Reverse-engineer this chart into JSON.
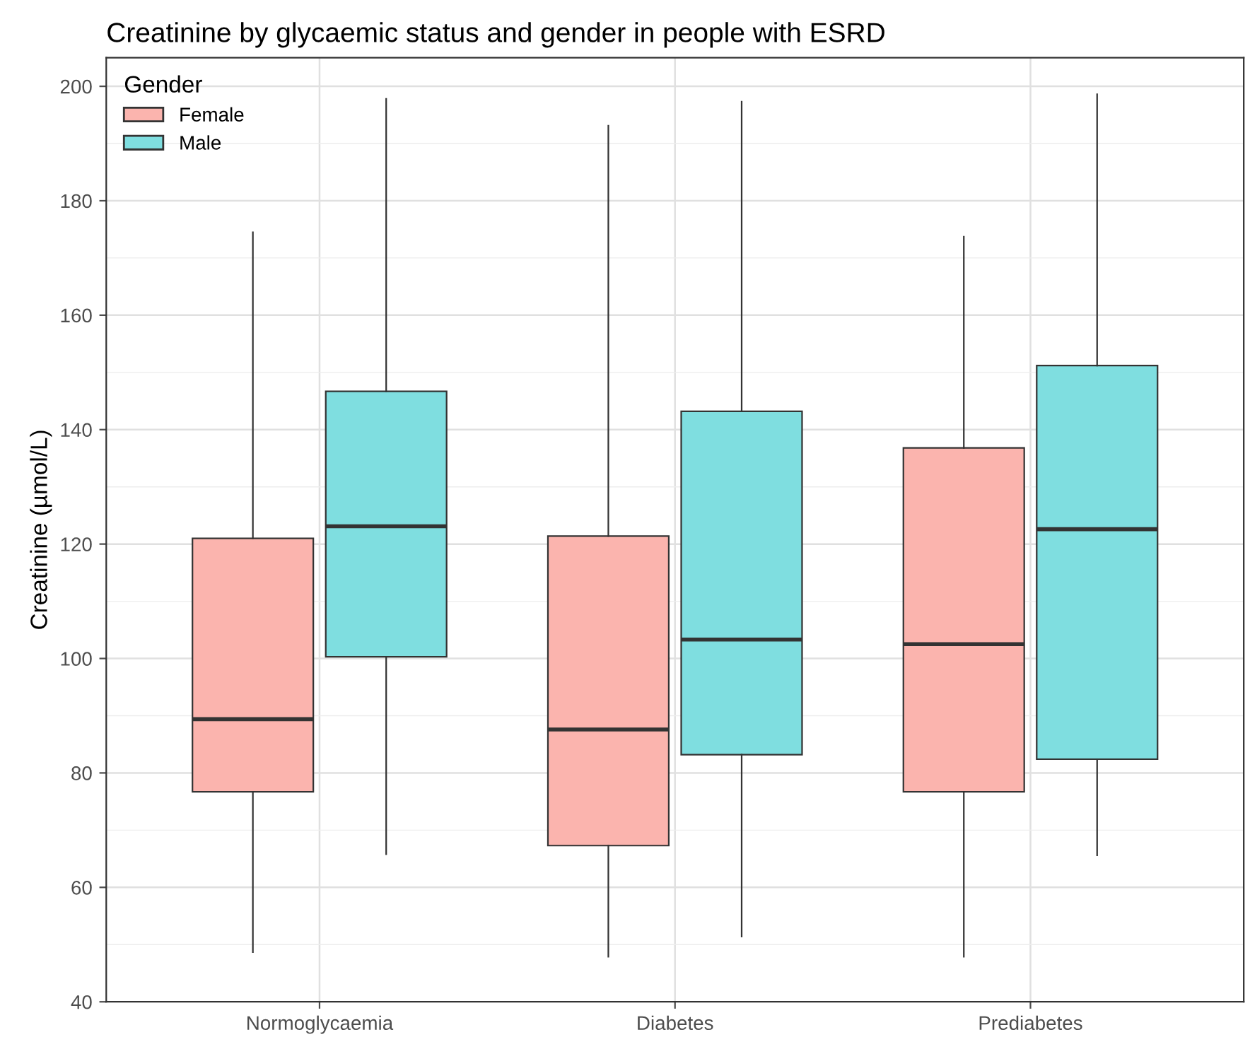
{
  "chart_data": {
    "type": "box",
    "title": "Creatinine by glycaemic status and gender in people with ESRD",
    "ylabel": "Creatinine (µmol/L)",
    "legend_title": "Gender",
    "categories": [
      "Normoglycaemia",
      "Diabetes",
      "Prediabetes"
    ],
    "series": [
      {
        "name": "Female",
        "color": "#fbb4ae",
        "boxes": [
          {
            "low": 48.7,
            "q1": 76.7,
            "median": 89.4,
            "q3": 121,
            "high": 174.5
          },
          {
            "low": 47.9,
            "q1": 67.3,
            "median": 87.6,
            "q3": 121.4,
            "high": 193.1
          },
          {
            "low": 47.9,
            "q1": 76.7,
            "median": 102.5,
            "q3": 136.8,
            "high": 173.7
          }
        ]
      },
      {
        "name": "Male",
        "color": "#7fdee0",
        "boxes": [
          {
            "low": 65.8,
            "q1": 100.3,
            "median": 123.1,
            "q3": 146.7,
            "high": 197.8
          },
          {
            "low": 51.4,
            "q1": 83.2,
            "median": 103.3,
            "q3": 143.2,
            "high": 197.3
          },
          {
            "low": 65.6,
            "q1": 82.4,
            "median": 122.6,
            "q3": 151.2,
            "high": 198.6
          }
        ]
      }
    ],
    "ylim": [
      40,
      205
    ],
    "yticks": [
      40,
      60,
      80,
      100,
      120,
      140,
      160,
      180,
      200
    ],
    "grid": true,
    "legend": "top left"
  }
}
